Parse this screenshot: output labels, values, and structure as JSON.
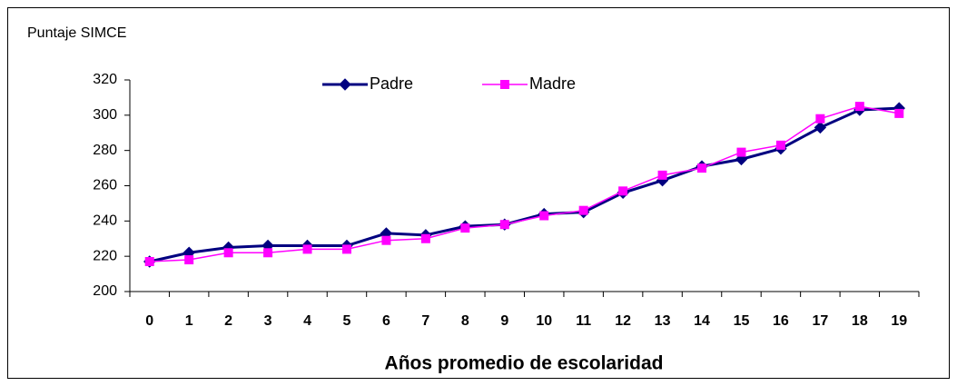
{
  "chart_data": {
    "type": "line",
    "y_label": "Puntaje SIMCE",
    "x_label": "Años promedio de escolaridad",
    "categories": [
      "0",
      "1",
      "2",
      "3",
      "4",
      "5",
      "6",
      "7",
      "8",
      "9",
      "10",
      "11",
      "12",
      "13",
      "14",
      "15",
      "16",
      "17",
      "18",
      "19"
    ],
    "series": [
      {
        "name": "Padre",
        "color": "#000080",
        "marker": "diamond",
        "values": [
          217,
          222,
          225,
          226,
          226,
          226,
          233,
          232,
          237,
          238,
          244,
          245,
          256,
          263,
          271,
          275,
          281,
          293,
          303,
          304
        ]
      },
      {
        "name": "Madre",
        "color": "#ff00ff",
        "marker": "square",
        "values": [
          217,
          218,
          222,
          222,
          224,
          224,
          229,
          230,
          236,
          238,
          243,
          246,
          257,
          266,
          270,
          279,
          283,
          298,
          305,
          301
        ]
      }
    ],
    "ylim": [
      200,
      320
    ],
    "yticks": [
      200,
      220,
      240,
      260,
      280,
      300,
      320
    ],
    "grid": false,
    "legend": "top"
  }
}
